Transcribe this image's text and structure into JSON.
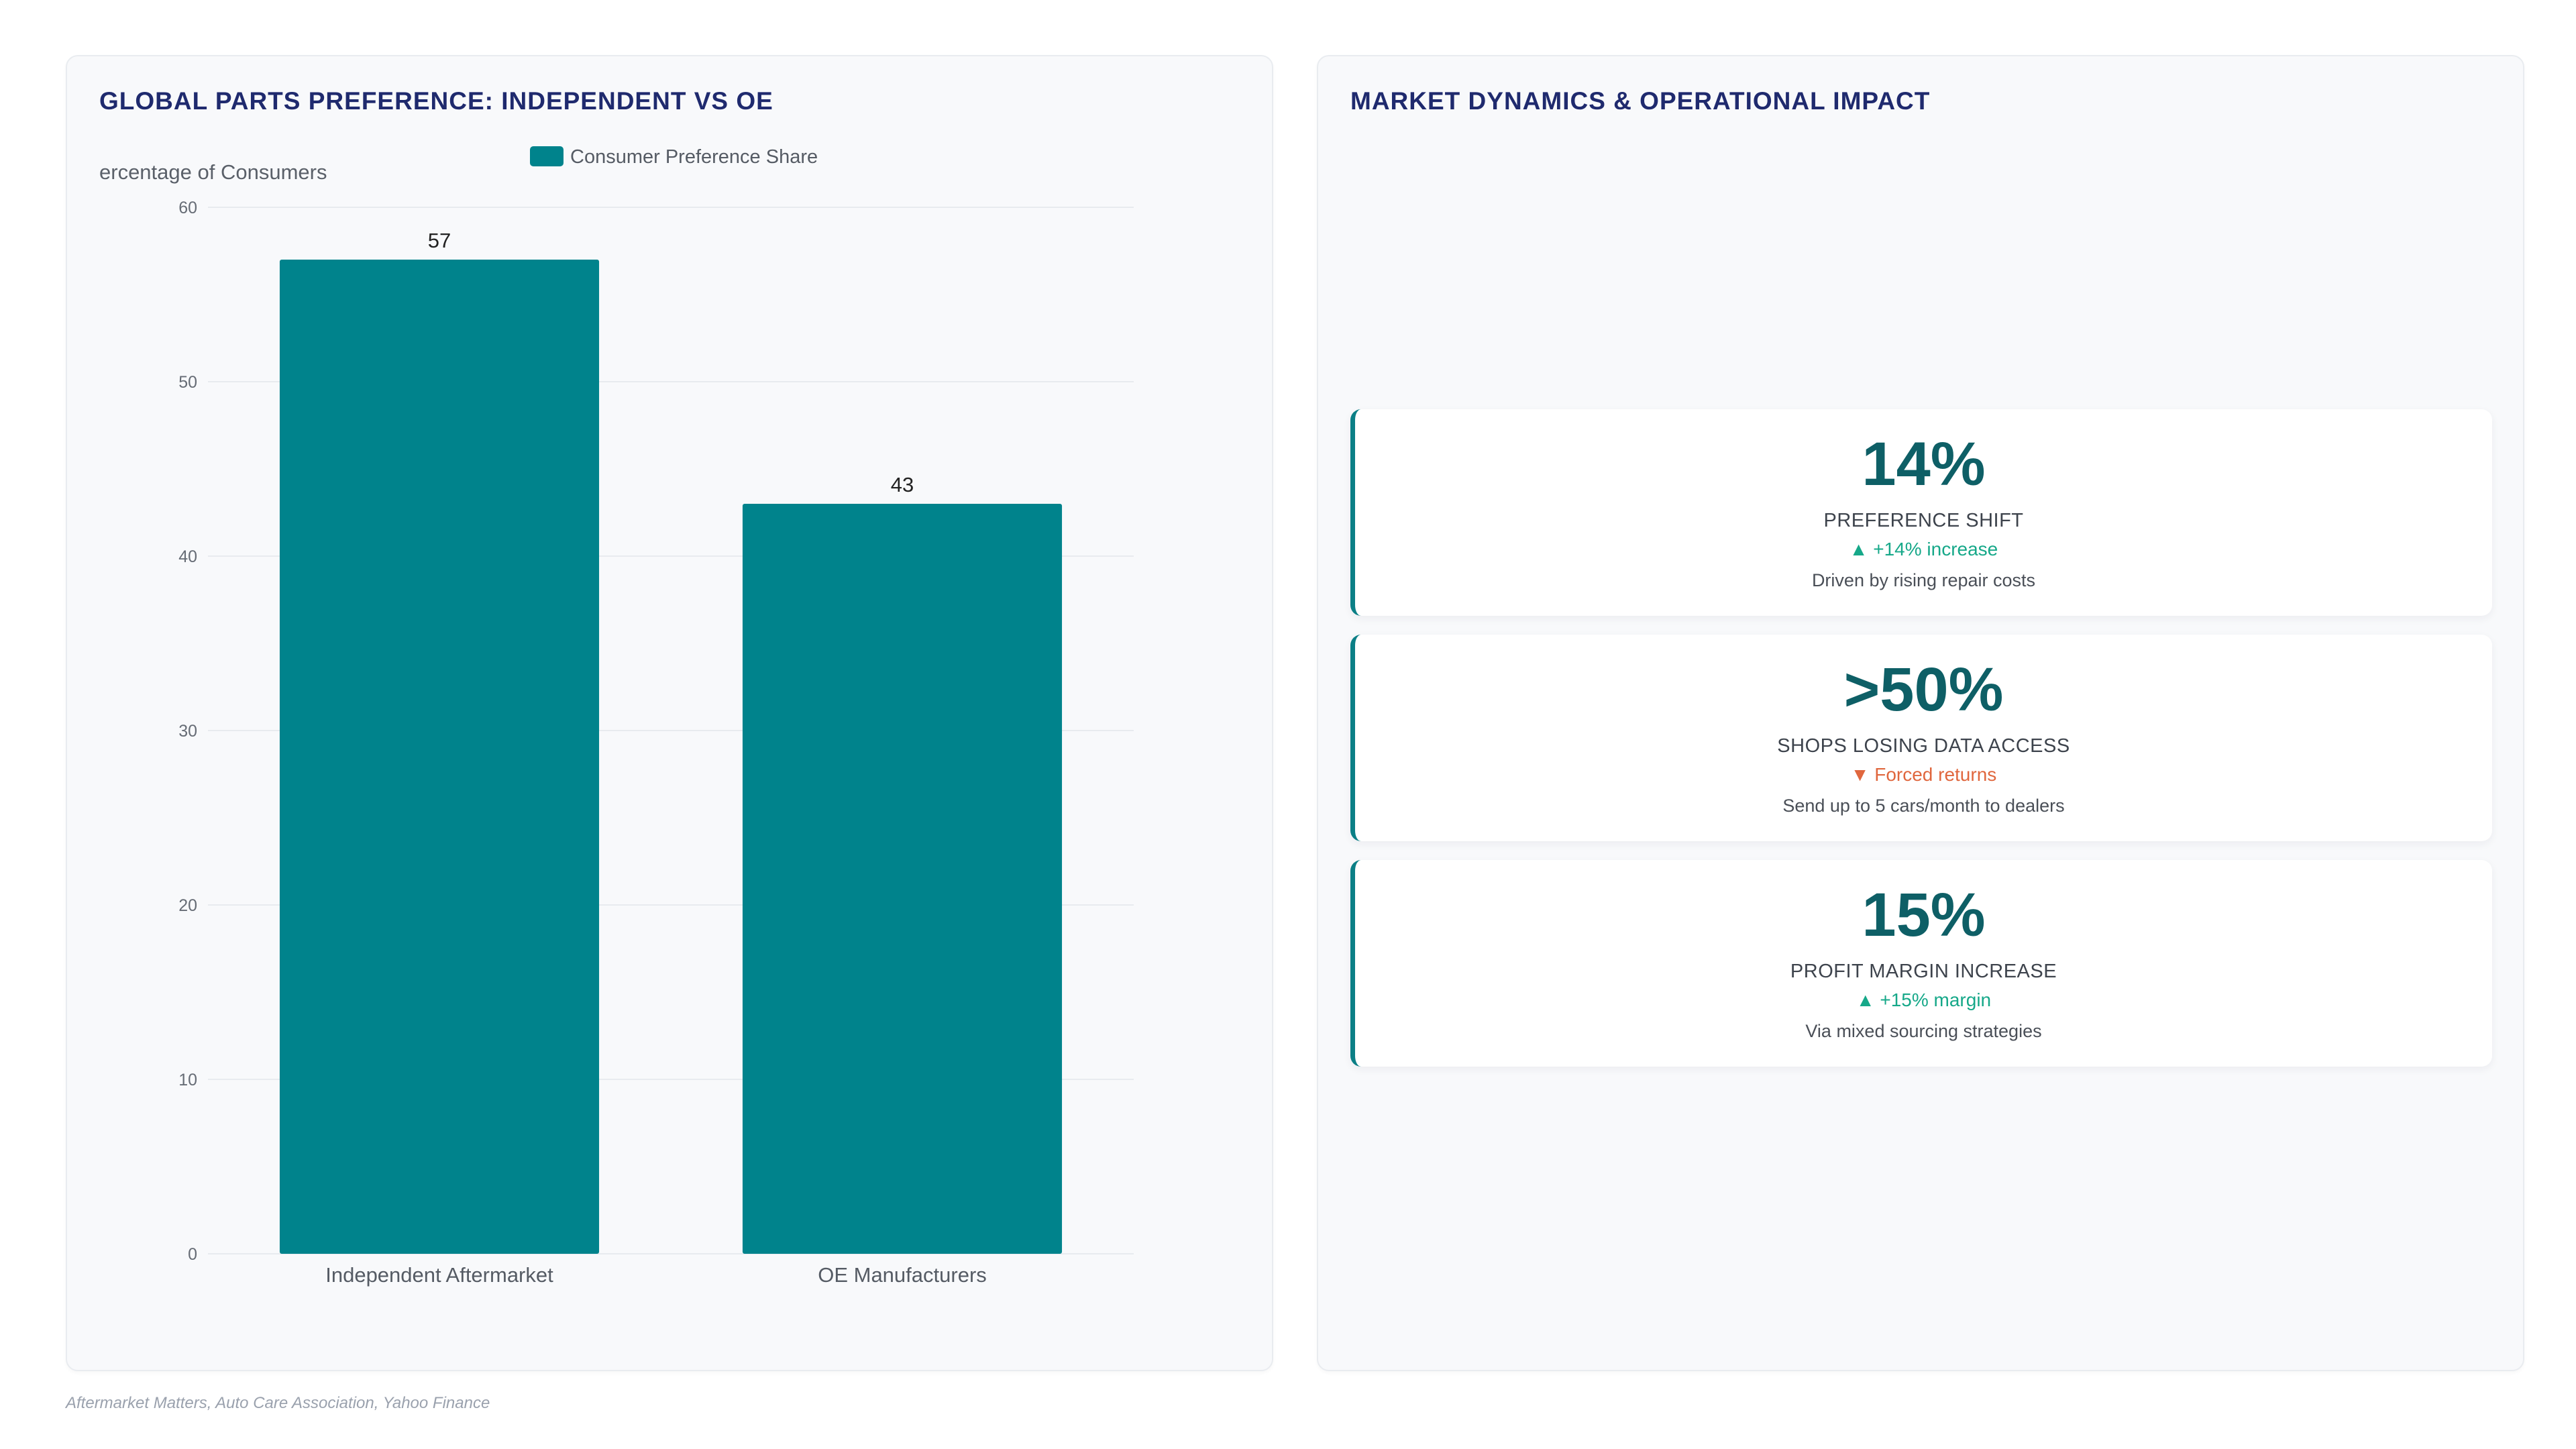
{
  "left_panel": {
    "title": "GLOBAL PARTS PREFERENCE: INDEPENDENT VS OE"
  },
  "right_panel": {
    "title": "MARKET DYNAMICS & OPERATIONAL IMPACT",
    "cards": [
      {
        "value": "14%",
        "label": "PREFERENCE SHIFT",
        "change": "▲ +14% increase",
        "direction": "up",
        "note": "Driven by rising repair costs"
      },
      {
        "value": ">50%",
        "label": "SHOPS LOSING DATA ACCESS",
        "change": "▼ Forced returns",
        "direction": "down",
        "note": "Send up to 5 cars/month to dealers"
      },
      {
        "value": "15%",
        "label": "PROFIT MARGIN INCREASE",
        "change": "▲ +15% margin",
        "direction": "up",
        "note": "Via mixed sourcing strategies"
      }
    ]
  },
  "chart_data": {
    "type": "bar",
    "categories": [
      "Independent Aftermarket",
      "OE Manufacturers"
    ],
    "series": [
      {
        "name": "Consumer Preference Share",
        "values": [
          57,
          43
        ],
        "color": "#00838c"
      }
    ],
    "value_labels": [
      "57",
      "43"
    ],
    "ylabel": "ercentage of Consumers",
    "ylim": [
      0,
      60
    ],
    "yticks": [
      0,
      10,
      20,
      30,
      40,
      50,
      60
    ],
    "grid": true,
    "legend_position": "top-center"
  },
  "colors": {
    "bar": "#00838c",
    "title": "#1f2a6e",
    "stat_value": "#0e5f66",
    "up": "#16a889",
    "down": "#e0673e",
    "accent_border": "#0b7f86"
  },
  "footer": {
    "source": "Aftermarket Matters, Auto Care Association, Yahoo Finance"
  }
}
